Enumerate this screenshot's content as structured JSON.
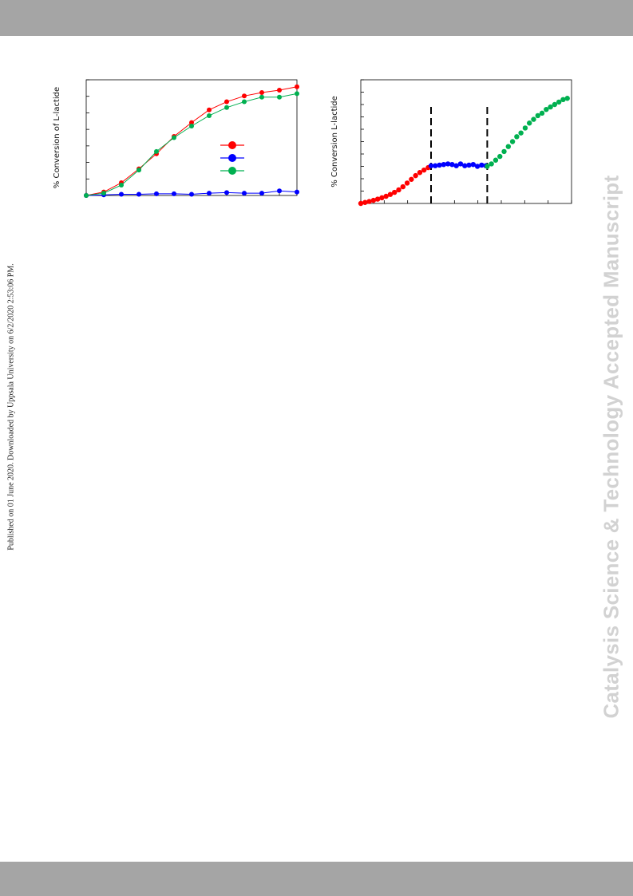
{
  "publication_note": "Published on 01 June 2020. Downloaded by Uppsala University on 6/2/2020 2:53:06 PM.",
  "watermark": "Catalysis Science & Technology Accepted Manuscript",
  "colors": {
    "red": "#ff0000",
    "blue": "#0000ff",
    "green": "#00b050",
    "bar": "#a5a5a5"
  },
  "chart_data": [
    {
      "type": "line",
      "ylabel": "% Conversion of L-lactide",
      "xlim": [
        0,
        12
      ],
      "ylim": [
        0,
        100
      ],
      "grid": false,
      "legend": {
        "position": "middle-right",
        "entries": [
          "",
          "",
          ""
        ]
      },
      "series": [
        {
          "color": "red",
          "x": [
            0,
            1,
            2,
            3,
            4,
            5,
            6,
            7,
            8,
            9,
            10,
            11,
            12
          ],
          "values": [
            0,
            3,
            11,
            23,
            36,
            51,
            63,
            74,
            81,
            86,
            89,
            91,
            94
          ]
        },
        {
          "color": "blue",
          "x": [
            0,
            1,
            2,
            3,
            4,
            5,
            6,
            7,
            8,
            9,
            10,
            11,
            12
          ],
          "values": [
            0,
            0.5,
            1,
            1,
            1.5,
            1.5,
            1,
            2,
            2.5,
            2,
            2,
            4,
            3
          ]
        },
        {
          "color": "green",
          "x": [
            0,
            1,
            2,
            3,
            4,
            5,
            6,
            7,
            8,
            9,
            10,
            11,
            12
          ],
          "values": [
            0,
            2,
            9,
            22,
            38,
            50,
            60,
            69,
            76,
            81,
            85,
            85,
            88
          ]
        }
      ]
    },
    {
      "type": "scatter",
      "ylabel": "% Conversion L-lactide",
      "xlim": [
        0,
        9
      ],
      "ylim": [
        0,
        100
      ],
      "grid": false,
      "vlines": [
        3,
        5.4
      ],
      "series": [
        {
          "color": "red",
          "x": [
            0,
            0.18,
            0.36,
            0.54,
            0.72,
            0.9,
            1.08,
            1.26,
            1.44,
            1.62,
            1.8,
            1.98,
            2.16,
            2.34,
            2.52,
            2.7,
            2.88
          ],
          "values": [
            0,
            0.8,
            1.6,
            2.5,
            3.5,
            4.6,
            5.8,
            7.3,
            9,
            11,
            13.5,
            16.5,
            19.5,
            22.5,
            25,
            27,
            29
          ]
        },
        {
          "color": "blue",
          "x": [
            3,
            3.18,
            3.36,
            3.54,
            3.72,
            3.9,
            4.08,
            4.26,
            4.44,
            4.62,
            4.8,
            4.98,
            5.16,
            5.34
          ],
          "values": [
            30.5,
            30.5,
            31,
            31.5,
            32,
            31.5,
            30.5,
            32,
            30.5,
            31,
            31.5,
            30,
            31,
            30.5
          ]
        },
        {
          "color": "green",
          "x": [
            5.4,
            5.58,
            5.76,
            5.94,
            6.12,
            6.3,
            6.48,
            6.66,
            6.84,
            7.02,
            7.2,
            7.38,
            7.56,
            7.74,
            7.92,
            8.1,
            8.28,
            8.46,
            8.64,
            8.82
          ],
          "values": [
            30,
            32,
            35,
            38,
            42,
            46,
            50,
            54,
            57,
            61,
            65,
            68,
            71,
            73,
            76,
            78,
            80,
            82,
            84,
            85
          ]
        }
      ]
    }
  ]
}
